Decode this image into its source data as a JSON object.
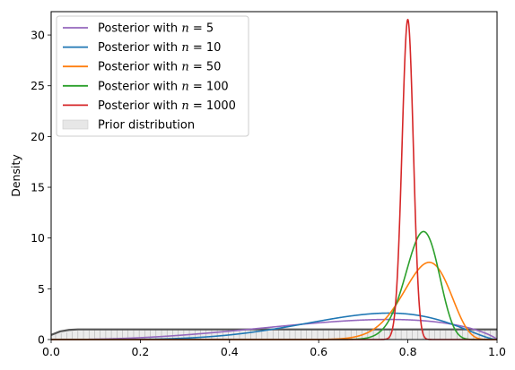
{
  "chart_data": {
    "type": "line",
    "title": "",
    "xlabel": "",
    "ylabel": "Density",
    "xlim": [
      0.0,
      1.0
    ],
    "ylim": [
      0,
      32.3
    ],
    "grid": false,
    "legend_position": "top-left",
    "x_ticks": [
      "0.0",
      "0.2",
      "0.4",
      "0.6",
      "0.8",
      "1.0"
    ],
    "y_ticks": [
      "0",
      "5",
      "10",
      "15",
      "20",
      "25",
      "30"
    ],
    "series": [
      {
        "name_prefix": "Posterior with ",
        "name_var": "n",
        "name_value": "= 5",
        "color": "#9467bd",
        "alpha": 3.5,
        "beta": 1.8
      },
      {
        "name_prefix": "Posterior with ",
        "name_var": "n",
        "name_value": "= 10",
        "color": "#1f77b4",
        "alpha": 6.0,
        "beta": 2.6
      },
      {
        "name_prefix": "Posterior with ",
        "name_var": "n",
        "name_value": "= 50",
        "color": "#ff7f0e",
        "alpha": 40.0,
        "beta": 8.0
      },
      {
        "name_prefix": "Posterior with ",
        "name_var": "n",
        "name_value": "= 100",
        "color": "#2ca02c",
        "alpha": 82.0,
        "beta": 17.0
      },
      {
        "name_prefix": "Posterior with ",
        "name_var": "n",
        "name_value": "= 1000",
        "color": "#d62728",
        "alpha": 800.0,
        "beta": 201.0
      }
    ],
    "prior": {
      "name": "Prior distribution",
      "fill_color": "#d3d3d3",
      "line_color": "#555555",
      "density": 1.0,
      "x": [
        0.0,
        0.02,
        0.04,
        0.06,
        0.08,
        1.0
      ],
      "y": [
        0.45,
        0.8,
        0.95,
        1.0,
        1.0,
        1.0
      ]
    }
  }
}
